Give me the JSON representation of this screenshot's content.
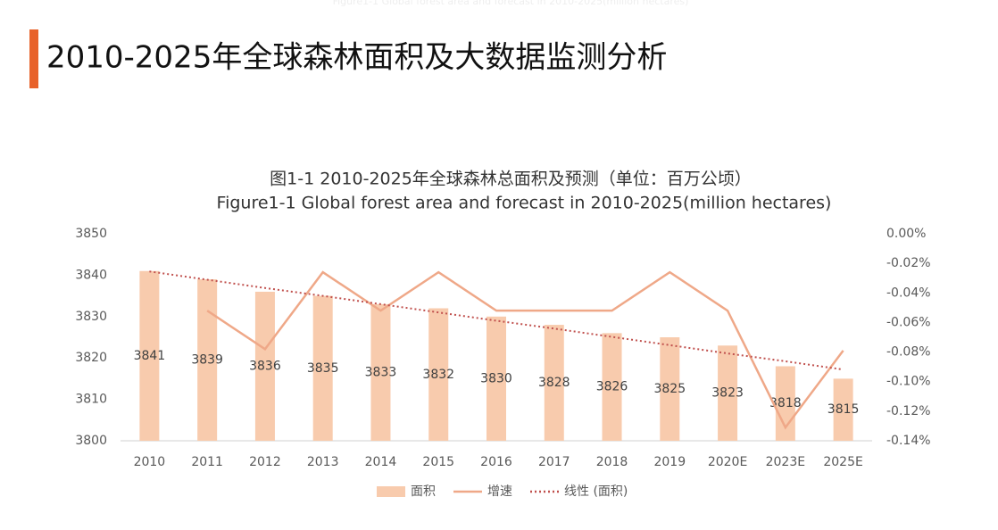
{
  "header": {
    "title": "2010-2025年全球森林面积及大数据监测分析",
    "ghost": "Figure1-1 Global forest area and forecast in 2010-2025(million hectares)"
  },
  "chart_data": {
    "type": "bar",
    "title": "图1-1 2010-2025年全球森林总面积及预测（单位：百万公顷）",
    "subtitle": "Figure1-1 Global forest area and forecast in 2010-2025(million hectares)",
    "categories": [
      "2010",
      "2011",
      "2012",
      "2013",
      "2014",
      "2015",
      "2016",
      "2017",
      "2018",
      "2019",
      "2020E",
      "2023E",
      "2025E"
    ],
    "series": [
      {
        "name": "面积",
        "type": "bar",
        "color": "#f8cbad",
        "values": [
          3841,
          3839,
          3836,
          3835,
          3833,
          3832,
          3830,
          3828,
          3826,
          3825,
          3823,
          3818,
          3815
        ]
      },
      {
        "name": "增速",
        "type": "line",
        "color": "#efa888",
        "axis": "y2",
        "values": [
          null,
          -0.052,
          -0.078,
          -0.026,
          -0.052,
          -0.026,
          -0.052,
          -0.052,
          -0.052,
          -0.026,
          -0.052,
          -0.131,
          -0.079
        ]
      },
      {
        "name": "线性 (面积)",
        "type": "line",
        "dashed": true,
        "color": "#c0504d",
        "values": [
          3840.9,
          3838.9,
          3836.9,
          3835.0,
          3833.0,
          3831.0,
          3829.0,
          3827.1,
          3825.1,
          3823.1,
          3821.1,
          3819.2,
          3817.2
        ]
      }
    ],
    "ylim": [
      3800,
      3850
    ],
    "yticks": [
      3800,
      3810,
      3820,
      3830,
      3840,
      3850
    ],
    "y2lim": [
      -0.14,
      0
    ],
    "y2ticks": [
      {
        "value": -0.14,
        "label": "-0.14%"
      },
      {
        "value": -0.12,
        "label": "-0.12%"
      },
      {
        "value": -0.1,
        "label": "-0.10%"
      },
      {
        "value": -0.08,
        "label": "-0.08%"
      },
      {
        "value": -0.06,
        "label": "-0.06%"
      },
      {
        "value": -0.04,
        "label": "-0.04%"
      },
      {
        "value": -0.02,
        "label": "-0.02%"
      },
      {
        "value": 0,
        "label": "0.00%"
      }
    ],
    "grid": false,
    "legend": "bottom"
  }
}
